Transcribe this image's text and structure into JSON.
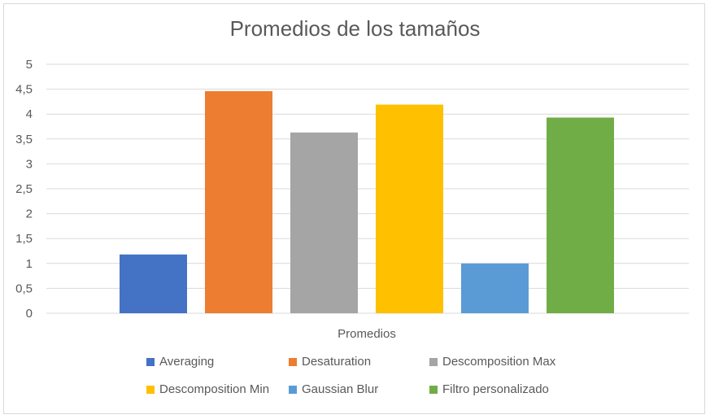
{
  "chart_data": {
    "type": "bar",
    "title": "Promedios de los tamaños",
    "xlabel": "Promedios",
    "ylabel": "",
    "categories": [
      "Promedios"
    ],
    "ylim": [
      0,
      5
    ],
    "yticks": [
      "0",
      "0,5",
      "1",
      "1,5",
      "2",
      "2,5",
      "3",
      "3,5",
      "4",
      "4,5",
      "5"
    ],
    "grid": true,
    "legend_position": "bottom",
    "series": [
      {
        "name": "Averaging",
        "values": [
          1.18
        ],
        "color": "#4472c4"
      },
      {
        "name": "Desaturation",
        "values": [
          4.46
        ],
        "color": "#ed7d31"
      },
      {
        "name": "Descomposition Max",
        "values": [
          3.63
        ],
        "color": "#a5a5a5"
      },
      {
        "name": "Descomposition Min",
        "values": [
          4.19
        ],
        "color": "#ffc000"
      },
      {
        "name": "Gaussian Blur",
        "values": [
          1.0
        ],
        "color": "#5b9bd5"
      },
      {
        "name": "Filtro personalizado",
        "values": [
          3.93
        ],
        "color": "#70ad47"
      }
    ]
  }
}
